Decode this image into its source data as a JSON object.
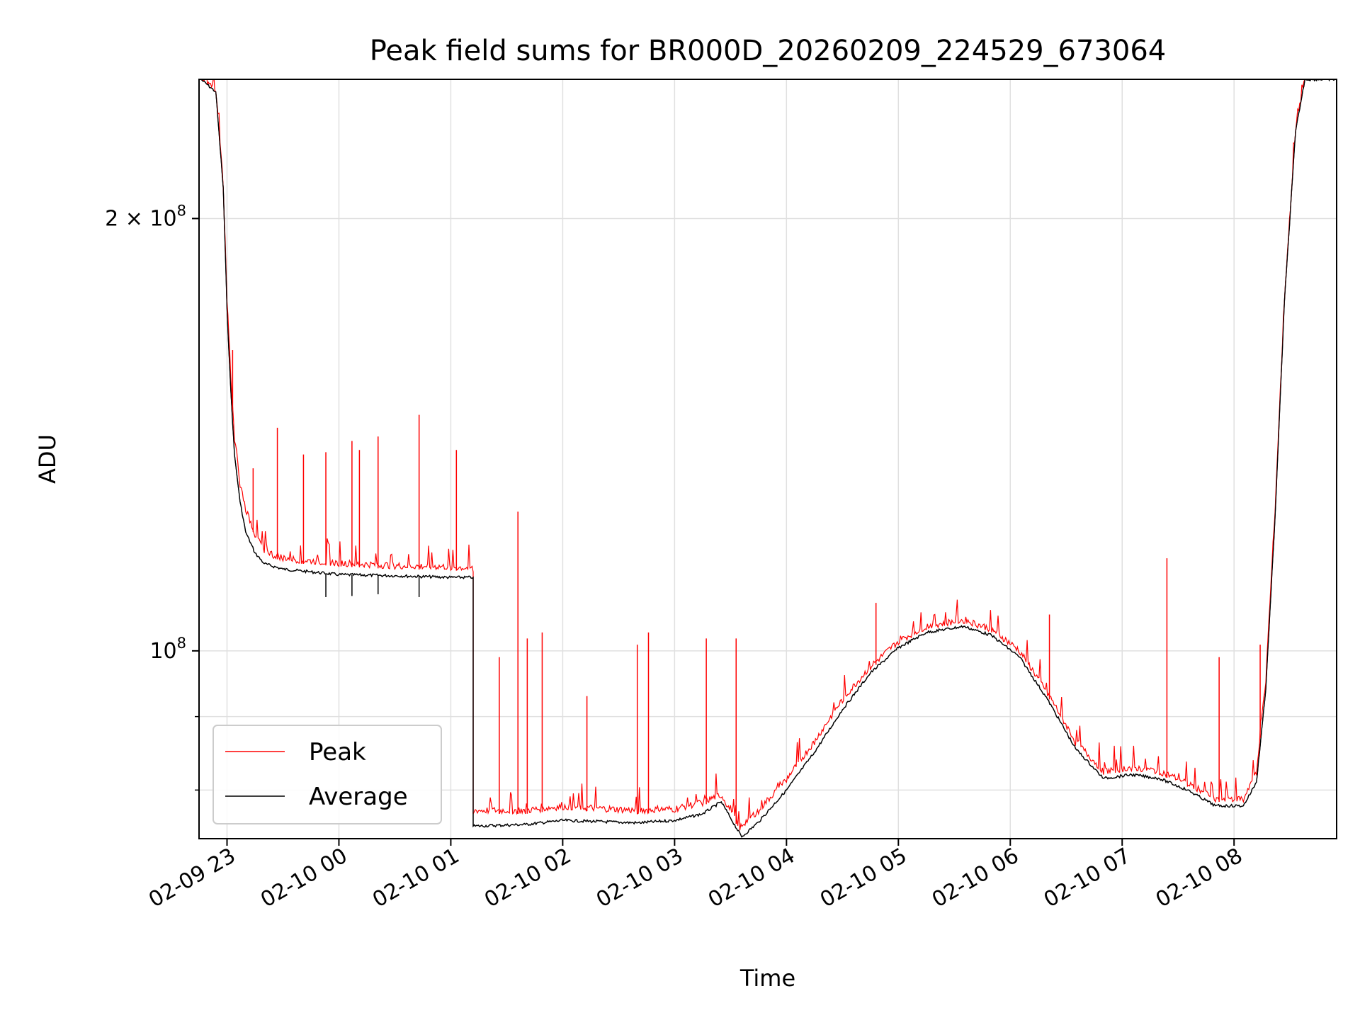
{
  "chart_data": {
    "type": "line",
    "title": "Peak field sums for BR000D_20260209_224529_673064",
    "xlabel": "Time",
    "ylabel": "ADU",
    "y_scale": "log",
    "grid": true,
    "legend_position": "lower-left",
    "xlim": [
      "2026-02-09 22:45",
      "2026-02-10 08:55"
    ],
    "ylim": [
      74000000,
      250000000
    ],
    "x_ticks": [
      {
        "label": "02-09 23",
        "time": "2026-02-09 23:00"
      },
      {
        "label": "02-10 00",
        "time": "2026-02-10 00:00"
      },
      {
        "label": "02-10 01",
        "time": "2026-02-10 01:00"
      },
      {
        "label": "02-10 02",
        "time": "2026-02-10 02:00"
      },
      {
        "label": "02-10 03",
        "time": "2026-02-10 03:00"
      },
      {
        "label": "02-10 04",
        "time": "2026-02-10 04:00"
      },
      {
        "label": "02-10 05",
        "time": "2026-02-10 05:00"
      },
      {
        "label": "02-10 06",
        "time": "2026-02-10 06:00"
      },
      {
        "label": "02-10 07",
        "time": "2026-02-10 07:00"
      },
      {
        "label": "02-10 08",
        "time": "2026-02-10 08:00"
      }
    ],
    "y_major_ticks": [
      {
        "value": 100000000,
        "base": "10",
        "exp": "8",
        "coef": ""
      },
      {
        "value": 200000000,
        "base": "10",
        "exp": "8",
        "coef": "2 × "
      }
    ],
    "y_minor_ticks": [
      80000000,
      90000000
    ],
    "series": [
      {
        "name": "Peak",
        "color": "#ff0000",
        "points": [
          [
            "2026-02-09 22:46",
            250000000
          ],
          [
            "2026-02-09 22:54",
            245000000
          ],
          [
            "2026-02-09 22:58",
            210000000
          ],
          [
            "2026-02-09 23:00",
            175000000
          ],
          [
            "2026-02-09 23:02",
            155000000
          ],
          [
            "2026-02-09 23:04",
            140000000
          ],
          [
            "2026-02-09 23:07",
            130000000
          ],
          [
            "2026-02-09 23:10",
            125000000
          ],
          [
            "2026-02-09 23:15",
            120000000
          ],
          [
            "2026-02-09 23:20",
            117000000
          ],
          [
            "2026-02-09 23:25",
            116000000
          ],
          [
            "2026-02-09 23:30",
            115500000
          ],
          [
            "2026-02-09 23:40",
            115000000
          ],
          [
            "2026-02-10 00:00",
            114500000
          ],
          [
            "2026-02-10 00:30",
            114000000
          ],
          [
            "2026-02-10 01:00",
            113800000
          ],
          [
            "2026-02-10 01:12",
            113500000
          ],
          [
            "2026-02-10 01:12",
            77000000
          ],
          [
            "2026-02-10 01:40",
            77000000
          ],
          [
            "2026-02-10 02:00",
            77500000
          ],
          [
            "2026-02-10 02:40",
            77000000
          ],
          [
            "2026-02-10 03:00",
            77200000
          ],
          [
            "2026-02-10 03:15",
            78000000
          ],
          [
            "2026-02-10 03:25",
            79000000
          ],
          [
            "2026-02-10 03:35",
            75000000
          ],
          [
            "2026-02-10 03:45",
            77000000
          ],
          [
            "2026-02-10 04:00",
            81000000
          ],
          [
            "2026-02-10 04:15",
            86000000
          ],
          [
            "2026-02-10 04:30",
            92000000
          ],
          [
            "2026-02-10 04:45",
            97000000
          ],
          [
            "2026-02-10 05:00",
            101000000
          ],
          [
            "2026-02-10 05:15",
            103500000
          ],
          [
            "2026-02-10 05:35",
            104500000
          ],
          [
            "2026-02-10 05:50",
            103000000
          ],
          [
            "2026-02-10 06:05",
            99500000
          ],
          [
            "2026-02-10 06:20",
            93000000
          ],
          [
            "2026-02-10 06:35",
            86000000
          ],
          [
            "2026-02-10 06:50",
            82000000
          ],
          [
            "2026-02-10 07:05",
            82500000
          ],
          [
            "2026-02-10 07:20",
            82000000
          ],
          [
            "2026-02-10 07:35",
            80500000
          ],
          [
            "2026-02-10 07:50",
            78500000
          ],
          [
            "2026-02-10 08:05",
            78500000
          ],
          [
            "2026-02-10 08:12",
            82000000
          ],
          [
            "2026-02-10 08:17",
            95000000
          ],
          [
            "2026-02-10 08:22",
            125000000
          ],
          [
            "2026-02-10 08:27",
            175000000
          ],
          [
            "2026-02-10 08:33",
            230000000
          ],
          [
            "2026-02-10 08:38",
            250000000
          ],
          [
            "2026-02-10 08:55",
            250000000
          ]
        ],
        "spikes": [
          [
            "2026-02-09 23:03",
            162000000
          ],
          [
            "2026-02-09 23:14",
            134000000
          ],
          [
            "2026-02-09 23:27",
            143000000
          ],
          [
            "2026-02-09 23:41",
            137000000
          ],
          [
            "2026-02-09 23:53",
            137500000
          ],
          [
            "2026-02-10 00:07",
            140000000
          ],
          [
            "2026-02-10 00:11",
            138000000
          ],
          [
            "2026-02-10 00:21",
            141000000
          ],
          [
            "2026-02-10 00:43",
            146000000
          ],
          [
            "2026-02-10 01:03",
            138000000
          ],
          [
            "2026-02-10 01:26",
            99000000
          ],
          [
            "2026-02-10 01:36",
            125000000
          ],
          [
            "2026-02-10 01:41",
            102000000
          ],
          [
            "2026-02-10 01:49",
            103000000
          ],
          [
            "2026-02-10 02:13",
            93000000
          ],
          [
            "2026-02-10 02:40",
            101000000
          ],
          [
            "2026-02-10 02:46",
            103000000
          ],
          [
            "2026-02-10 03:17",
            102000000
          ],
          [
            "2026-02-10 03:33",
            102000000
          ],
          [
            "2026-02-10 04:48",
            108000000
          ],
          [
            "2026-02-10 06:21",
            106000000
          ],
          [
            "2026-02-10 07:24",
            116000000
          ],
          [
            "2026-02-10 07:52",
            99000000
          ],
          [
            "2026-02-10 08:14",
            101000000
          ]
        ]
      },
      {
        "name": "Average",
        "color": "#000000",
        "points": [
          [
            "2026-02-09 22:46",
            250000000
          ],
          [
            "2026-02-09 22:54",
            245000000
          ],
          [
            "2026-02-09 22:58",
            210000000
          ],
          [
            "2026-02-09 23:00",
            173000000
          ],
          [
            "2026-02-09 23:02",
            152000000
          ],
          [
            "2026-02-09 23:04",
            137000000
          ],
          [
            "2026-02-09 23:07",
            127000000
          ],
          [
            "2026-02-09 23:10",
            121000000
          ],
          [
            "2026-02-09 23:15",
            117000000
          ],
          [
            "2026-02-09 23:20",
            115000000
          ],
          [
            "2026-02-09 23:30",
            114000000
          ],
          [
            "2026-02-09 23:45",
            113500000
          ],
          [
            "2026-02-10 00:00",
            113000000
          ],
          [
            "2026-02-10 00:30",
            112800000
          ],
          [
            "2026-02-10 01:00",
            112500000
          ],
          [
            "2026-02-10 01:12",
            112500000
          ],
          [
            "2026-02-10 01:12",
            75500000
          ],
          [
            "2026-02-10 01:40",
            75700000
          ],
          [
            "2026-02-10 02:00",
            76200000
          ],
          [
            "2026-02-10 02:40",
            75900000
          ],
          [
            "2026-02-10 03:00",
            76200000
          ],
          [
            "2026-02-10 03:15",
            77000000
          ],
          [
            "2026-02-10 03:25",
            78500000
          ],
          [
            "2026-02-10 03:30",
            76500000
          ],
          [
            "2026-02-10 03:36",
            74200000
          ],
          [
            "2026-02-10 03:45",
            76000000
          ],
          [
            "2026-02-10 04:00",
            80000000
          ],
          [
            "2026-02-10 04:15",
            85000000
          ],
          [
            "2026-02-10 04:30",
            91000000
          ],
          [
            "2026-02-10 04:45",
            96500000
          ],
          [
            "2026-02-10 05:00",
            100500000
          ],
          [
            "2026-02-10 05:15",
            103000000
          ],
          [
            "2026-02-10 05:35",
            104000000
          ],
          [
            "2026-02-10 05:50",
            102500000
          ],
          [
            "2026-02-10 06:05",
            99000000
          ],
          [
            "2026-02-10 06:20",
            92500000
          ],
          [
            "2026-02-10 06:35",
            85500000
          ],
          [
            "2026-02-10 06:50",
            81500000
          ],
          [
            "2026-02-10 07:05",
            82000000
          ],
          [
            "2026-02-10 07:20",
            81500000
          ],
          [
            "2026-02-10 07:35",
            80000000
          ],
          [
            "2026-02-10 07:50",
            78000000
          ],
          [
            "2026-02-10 08:05",
            78000000
          ],
          [
            "2026-02-10 08:12",
            81000000
          ],
          [
            "2026-02-10 08:17",
            94000000
          ],
          [
            "2026-02-10 08:22",
            124000000
          ],
          [
            "2026-02-10 08:27",
            175000000
          ],
          [
            "2026-02-10 08:33",
            230000000
          ],
          [
            "2026-02-10 08:38",
            250000000
          ],
          [
            "2026-02-10 08:55",
            250000000
          ]
        ],
        "dips": [
          [
            "2026-02-09 23:53",
            109000000
          ],
          [
            "2026-02-10 00:07",
            109200000
          ],
          [
            "2026-02-10 00:21",
            109500000
          ],
          [
            "2026-02-10 00:43",
            109000000
          ]
        ]
      }
    ]
  }
}
